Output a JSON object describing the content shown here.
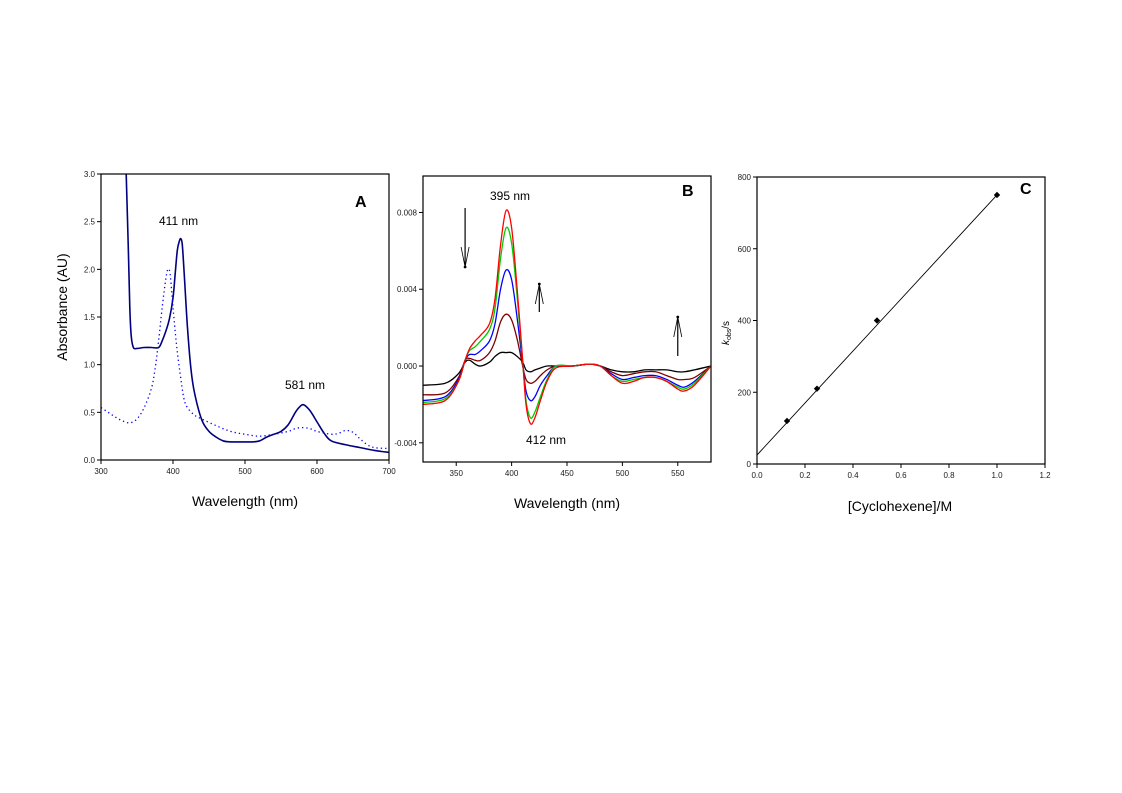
{
  "chart_data": [
    {
      "panel": "A",
      "type": "line",
      "xlabel": "Wavelength (nm)",
      "ylabel": "Absorbance (AU)",
      "xlim": [
        300,
        700
      ],
      "ylim": [
        0.0,
        3.0
      ],
      "xticks": [
        "300",
        "400",
        "500",
        "600",
        "700"
      ],
      "yticks": [
        "0.0",
        "0.5",
        "1.0",
        "1.5",
        "2.0",
        "2.5",
        "3.0"
      ],
      "annotations": [
        {
          "text": "411 nm",
          "x": 411,
          "y": 2.5
        },
        {
          "text": "581 nm",
          "x": 581,
          "y": 0.75
        }
      ],
      "panel_label": "A",
      "series": [
        {
          "name": "solid",
          "style": "solid",
          "color": "#000080",
          "x": [
            335,
            338,
            340,
            342,
            345,
            350,
            360,
            370,
            380,
            385,
            390,
            395,
            400,
            403,
            406,
            409,
            411,
            413,
            416,
            420,
            425,
            430,
            440,
            450,
            460,
            470,
            480,
            490,
            500,
            510,
            520,
            530,
            540,
            550,
            560,
            570,
            575,
            581,
            590,
            600,
            610,
            620,
            640,
            660,
            680,
            700
          ],
          "y": [
            3.0,
            2.2,
            1.6,
            1.3,
            1.18,
            1.17,
            1.18,
            1.18,
            1.18,
            1.25,
            1.35,
            1.48,
            1.7,
            1.95,
            2.2,
            2.3,
            2.32,
            2.25,
            1.9,
            1.4,
            0.95,
            0.7,
            0.42,
            0.3,
            0.24,
            0.2,
            0.19,
            0.19,
            0.19,
            0.19,
            0.2,
            0.24,
            0.27,
            0.3,
            0.37,
            0.5,
            0.55,
            0.58,
            0.52,
            0.4,
            0.28,
            0.2,
            0.16,
            0.13,
            0.1,
            0.08
          ]
        },
        {
          "name": "dotted",
          "style": "dotted",
          "color": "#0000ff",
          "x": [
            300,
            310,
            320,
            330,
            340,
            350,
            360,
            370,
            375,
            380,
            385,
            390,
            393,
            396,
            400,
            405,
            410,
            415,
            420,
            430,
            440,
            460,
            480,
            500,
            520,
            540,
            560,
            570,
            580,
            590,
            600,
            620,
            630,
            640,
            650,
            660,
            670,
            680,
            700
          ],
          "y": [
            0.55,
            0.5,
            0.45,
            0.41,
            0.39,
            0.43,
            0.55,
            0.75,
            0.95,
            1.25,
            1.6,
            1.9,
            2.0,
            1.95,
            1.6,
            1.2,
            0.9,
            0.65,
            0.55,
            0.47,
            0.43,
            0.36,
            0.3,
            0.27,
            0.25,
            0.27,
            0.3,
            0.33,
            0.34,
            0.33,
            0.3,
            0.27,
            0.28,
            0.31,
            0.29,
            0.22,
            0.16,
            0.13,
            0.12
          ]
        }
      ]
    },
    {
      "panel": "B",
      "type": "line",
      "xlabel": "Wavelength (nm)",
      "ylabel": "",
      "xlim": [
        320,
        580
      ],
      "ylim": [
        -0.005,
        0.0099
      ],
      "xticks": [
        "350",
        "400",
        "450",
        "500",
        "550"
      ],
      "yticks": [
        "-0.004",
        "0.000",
        "0.004",
        "0.008"
      ],
      "annotations": [
        {
          "text": "395 nm",
          "x": 395,
          "y": 0.009
        },
        {
          "text": "412 nm",
          "x": 412,
          "y": -0.0043
        }
      ],
      "arrows": [
        {
          "direction": "down",
          "x": 358
        },
        {
          "direction": "up",
          "x": 425
        },
        {
          "direction": "up",
          "x": 550
        }
      ],
      "panel_label": "B",
      "x": [
        320,
        340,
        352,
        358,
        362,
        367,
        372,
        380,
        385,
        390,
        395,
        400,
        405,
        410,
        413,
        417,
        421,
        426,
        432,
        440,
        455,
        470,
        480,
        490,
        500,
        510,
        520,
        530,
        540,
        550,
        556,
        565,
        580
      ],
      "series": [
        {
          "name": "trace-1",
          "color": "#ff0000",
          "y": [
            -0.002,
            -0.0018,
            -0.0008,
            0.0003,
            0.0009,
            0.0013,
            0.0016,
            0.0022,
            0.0035,
            0.0063,
            0.0081,
            0.0072,
            0.004,
            0.0003,
            -0.002,
            -0.003,
            -0.0027,
            -0.0018,
            -0.0008,
            -0.0001,
            0.0,
            0.0001,
            0.0,
            -0.0005,
            -0.0009,
            -0.0008,
            -0.0006,
            -0.0006,
            -0.0008,
            -0.0012,
            -0.0013,
            -0.001,
            0.0
          ]
        },
        {
          "name": "trace-2",
          "color": "#00cc00",
          "y": [
            -0.0019,
            -0.0017,
            -0.0008,
            0.0003,
            0.0008,
            0.001,
            0.0013,
            0.0019,
            0.003,
            0.0056,
            0.0072,
            0.0064,
            0.0036,
            0.0002,
            -0.0018,
            -0.0027,
            -0.0024,
            -0.0016,
            -0.0007,
            0.0,
            0.0,
            0.0001,
            0.0,
            -0.0005,
            -0.0008,
            -0.0007,
            -0.0006,
            -0.0006,
            -0.0008,
            -0.0011,
            -0.0012,
            -0.0009,
            0.0
          ]
        },
        {
          "name": "trace-3",
          "color": "#0000ff",
          "y": [
            -0.0018,
            -0.0016,
            -0.0007,
            0.0003,
            0.0006,
            0.0006,
            0.0008,
            0.0013,
            0.0022,
            0.004,
            0.005,
            0.0045,
            0.0025,
            0.0001,
            -0.0013,
            -0.0018,
            -0.0016,
            -0.001,
            -0.0005,
            0.0,
            0.0,
            0.0001,
            0.0,
            -0.0004,
            -0.0007,
            -0.0006,
            -0.0005,
            -0.0005,
            -0.0007,
            -0.001,
            -0.0011,
            -0.0008,
            0.0
          ]
        },
        {
          "name": "trace-4",
          "color": "#800000",
          "y": [
            -0.0015,
            -0.0014,
            -0.0006,
            0.0003,
            0.0004,
            0.0003,
            0.0003,
            0.0007,
            0.0013,
            0.0023,
            0.0027,
            0.0024,
            0.0014,
            0.0,
            -0.0007,
            -0.0009,
            -0.0008,
            -0.0005,
            -0.0002,
            0.0,
            0.0,
            0.0001,
            0.0,
            -0.0003,
            -0.0005,
            -0.0004,
            -0.0003,
            -0.0003,
            -0.0005,
            -0.0007,
            -0.0007,
            -0.0006,
            0.0
          ]
        },
        {
          "name": "trace-5",
          "color": "#000000",
          "y": [
            -0.001,
            -0.0009,
            -0.0004,
            0.0002,
            0.0003,
            0.0001,
            0.0,
            0.0002,
            0.0005,
            0.0007,
            0.0007,
            0.0007,
            0.0005,
            0.0002,
            -0.0002,
            -0.0003,
            -0.0002,
            -0.0001,
            0.0,
            0.0,
            0.0,
            0.0001,
            0.0,
            -0.0002,
            -0.0003,
            -0.0003,
            -0.0002,
            -0.0002,
            -0.0002,
            -0.0003,
            -0.0003,
            -0.0002,
            0.0
          ]
        }
      ]
    },
    {
      "panel": "C",
      "type": "scatter",
      "xlabel": "[Cyclohexene]/M",
      "ylabel_main": "k",
      "ylabel_sub": "obs",
      "ylabel_tail": "/s",
      "xlim": [
        0.0,
        1.2
      ],
      "ylim": [
        0,
        800
      ],
      "xticks": [
        "0.0",
        "0.2",
        "0.4",
        "0.6",
        "0.8",
        "1.0",
        "1.2"
      ],
      "yticks": [
        "0",
        "200",
        "400",
        "600",
        "800"
      ],
      "panel_label": "C",
      "points": {
        "x": [
          0.125,
          0.25,
          0.5,
          1.0
        ],
        "y": [
          120,
          210,
          400,
          750
        ]
      },
      "fit": {
        "slope": 725,
        "intercept": 25,
        "x_range": [
          0.0,
          1.0
        ]
      }
    }
  ]
}
